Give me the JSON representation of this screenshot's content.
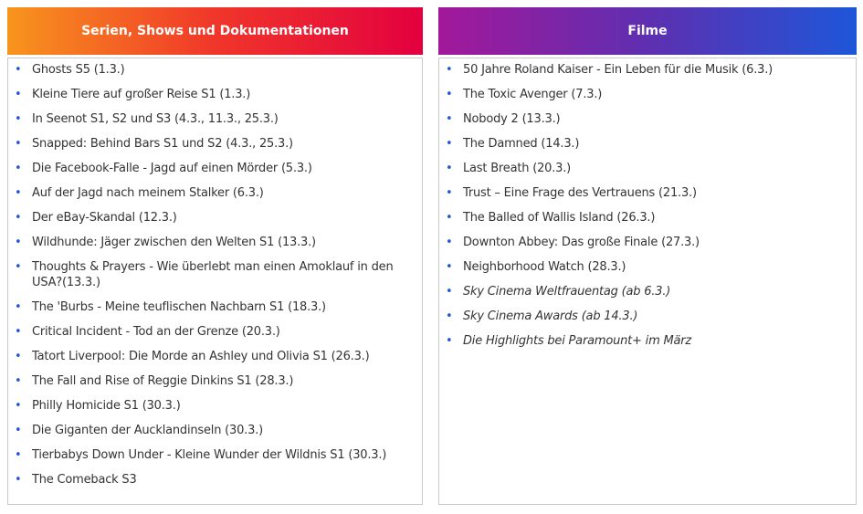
{
  "columns": [
    {
      "title": "Serien, Shows und Dokumentationen",
      "items": [
        "Ghosts S5 (1.3.)",
        "Kleine Tiere auf großer Reise S1 (1.3.)",
        "In Seenot S1, S2 und S3 (4.3., 11.3., 25.3.)",
        "Snapped: Behind Bars S1 und S2 (4.3., 25.3.)",
        "Die Facebook-Falle - Jagd auf einen Mörder (5.3.)",
        "Auf der Jagd nach meinem Stalker (6.3.)",
        "Der eBay-Skandal (12.3.)",
        "Wildhunde: Jäger zwischen den Welten S1 (13.3.)",
        "Thoughts & Prayers - Wie überlebt man einen Amoklauf in den USA?(13.3.)",
        "The 'Burbs - Meine teuflischen Nachbarn S1 (18.3.)",
        "Critical Incident - Tod an der Grenze (20.3.)",
        "Tatort Liverpool: Die Morde an Ashley und Olivia S1 (26.3.)",
        "The Fall and Rise of Reggie Dinkins S1 (28.3.)",
        "Philly Homicide S1 (30.3.)",
        "Die Giganten der Aucklandinseln (30.3.)",
        "Tierbabys Down Under - Kleine Wunder der Wildnis S1 (30.3.)",
        "The Comeback S3"
      ]
    },
    {
      "title": "Filme",
      "items": [
        "50 Jahre Roland Kaiser - Ein Leben für die Musik (6.3.)",
        "The Toxic Avenger (7.3.)",
        "Nobody 2 (13.3.)",
        "The Damned (14.3.)",
        "Last Breath (20.3.)",
        "Trust – Eine Frage des Vertrauens (21.3.)",
        "The Balled of Wallis Island (26.3.)",
        "Downton Abbey: Das große Finale (27.3.)",
        "Neighborhood Watch (28.3.)",
        "Sky Cinema Weltfrauentag (ab 6.3.)",
        "Sky Cinema Awards (ab 14.3.)",
        "Die Highlights bei Paramount+ im März"
      ]
    }
  ]
}
